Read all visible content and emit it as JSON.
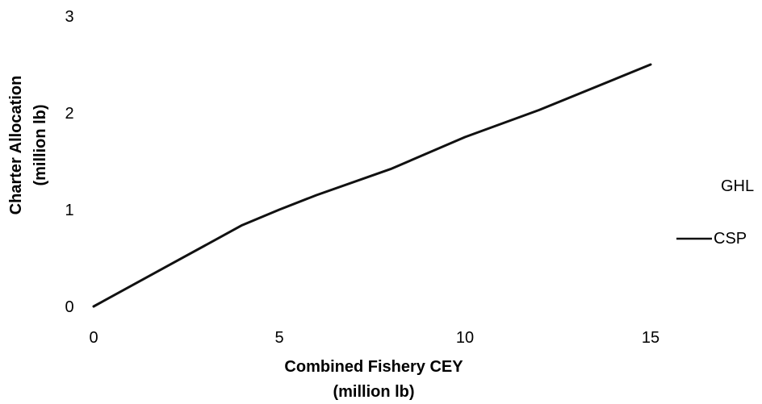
{
  "chart_data": {
    "type": "line",
    "xlabel": [
      "Combined Fishery CEY",
      "(million lb)"
    ],
    "ylabel": [
      "Charter Allocation",
      "(million lb)"
    ],
    "xlim": [
      0,
      15
    ],
    "ylim": [
      0,
      3
    ],
    "xticks": [
      "0",
      "5",
      "10",
      "15"
    ],
    "yticks": [
      "0",
      "1",
      "2",
      "3"
    ],
    "grid": false,
    "legend_position": "right",
    "series": [
      {
        "name": "GHL",
        "color": "#ffffff",
        "x": [],
        "y": []
      },
      {
        "name": "CSP",
        "color": "#111111",
        "x": [
          0,
          2,
          4,
          5,
          6,
          8,
          10,
          12,
          15
        ],
        "y": [
          0,
          0.42,
          0.84,
          1.0,
          1.15,
          1.42,
          1.75,
          2.03,
          2.5
        ]
      }
    ]
  }
}
